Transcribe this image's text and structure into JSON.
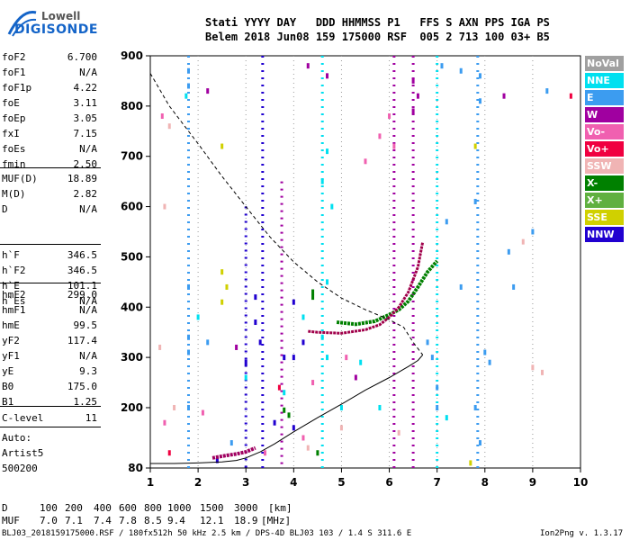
{
  "header": {
    "row1": "Stati YYYY DAY   DDD HHMMSS P1   FFS S AXN PPS IGA PS",
    "row2": "Belem 2018 Jun08 159 175000 RSF  005 2 713 100 03+ B5"
  },
  "logo": {
    "line1": "Lowell",
    "line2": "DIGISONDE"
  },
  "params_group1": [
    {
      "name": "foF2",
      "value": "6.700"
    },
    {
      "name": "foF1",
      "value": "N/A"
    },
    {
      "name": "foF1p",
      "value": "4.22"
    },
    {
      "name": "foE",
      "value": "3.11"
    },
    {
      "name": "foEp",
      "value": "3.05"
    },
    {
      "name": "fxI",
      "value": "7.15"
    },
    {
      "name": "foEs",
      "value": "N/A"
    },
    {
      "name": "fmin",
      "value": "2.50"
    }
  ],
  "params_group2": [
    {
      "name": "MUF(D)",
      "value": "18.89"
    },
    {
      "name": "M(D)",
      "value": "2.82"
    },
    {
      "name": "D",
      "value": "N/A"
    }
  ],
  "params_group3": [
    {
      "name": "h`F",
      "value": "346.5"
    },
    {
      "name": "h`F2",
      "value": "346.5"
    },
    {
      "name": "h`E",
      "value": "101.1"
    },
    {
      "name": "h`Es",
      "value": "N/A"
    }
  ],
  "params_group4": [
    {
      "name": "hmF2",
      "value": "299.0"
    },
    {
      "name": "hmF1",
      "value": "N/A"
    },
    {
      "name": "hmE",
      "value": "99.5"
    },
    {
      "name": "yF2",
      "value": "117.4"
    },
    {
      "name": "yF1",
      "value": "N/A"
    },
    {
      "name": "yE",
      "value": "9.3"
    },
    {
      "name": "B0",
      "value": "175.0"
    },
    {
      "name": "B1",
      "value": "1.25"
    }
  ],
  "params_group5": [
    {
      "name": "C-level",
      "value": "11"
    }
  ],
  "autoscale": {
    "line1": "Auto:",
    "line2": "Artist5",
    "line3": "500200"
  },
  "legend": [
    {
      "label": "NoVal",
      "color": "#a0a0a0"
    },
    {
      "label": "NNE",
      "color": "#00e0f0"
    },
    {
      "label": "E",
      "color": "#3c9cf0"
    },
    {
      "label": "W",
      "color": "#a000a0"
    },
    {
      "label": "Vo-",
      "color": "#f060b0"
    },
    {
      "label": "Vo+",
      "color": "#f00040"
    },
    {
      "label": "SSW",
      "color": "#f0b4b4"
    },
    {
      "label": "X-",
      "color": "#008000"
    },
    {
      "label": "X+",
      "color": "#60b040"
    },
    {
      "label": "SSE",
      "color": "#d0d000"
    },
    {
      "label": "NNW",
      "color": "#2000d0"
    }
  ],
  "muf_table": {
    "d_label": "D",
    "d_values": [
      "100",
      "200",
      "400",
      "600",
      "800",
      "1000",
      "1500",
      "3000",
      "[km]"
    ],
    "muf_label": "MUF",
    "muf_values": [
      "7.0",
      "7.1",
      "7.4",
      "7.8",
      "8.5",
      "9.4",
      "12.1",
      "18.9",
      "[MHz]"
    ]
  },
  "footer": {
    "left": "BLJ03_2018159175000.RSF / 180fx512h 50 kHz 2.5 km / DPS-4D BLJ03 103 / 1.4 S 311.6 E",
    "right": "Ion2Png v. 1.3.17"
  },
  "chart_data": {
    "type": "scatter",
    "xlim": [
      1,
      10
    ],
    "ylim": [
      80,
      900
    ],
    "x_ticks": [
      "1",
      "2",
      "3",
      "4",
      "5",
      "6",
      "7",
      "8",
      "9",
      "10"
    ],
    "y_ticks": [
      "80",
      "200",
      "300",
      "400",
      "500",
      "600",
      "700",
      "800",
      "900"
    ],
    "y_tick_values": [
      80,
      200,
      300,
      400,
      500,
      600,
      700,
      800,
      900
    ],
    "grid": "vertical dotted",
    "profile_curve": [
      [
        1.0,
        89
      ],
      [
        1.5,
        89
      ],
      [
        2.0,
        90
      ],
      [
        2.5,
        92
      ],
      [
        2.8,
        95
      ],
      [
        3.0,
        100
      ],
      [
        3.3,
        112
      ],
      [
        3.6,
        128
      ],
      [
        4.0,
        152
      ],
      [
        4.5,
        180
      ],
      [
        5.0,
        207
      ],
      [
        5.5,
        235
      ],
      [
        6.0,
        260
      ],
      [
        6.4,
        282
      ],
      [
        6.6,
        294
      ],
      [
        6.7,
        305
      ]
    ],
    "dashed_curve": [
      [
        1.0,
        865
      ],
      [
        1.4,
        800
      ],
      [
        2.0,
        725
      ],
      [
        2.5,
        660
      ],
      [
        3.0,
        600
      ],
      [
        3.5,
        540
      ],
      [
        4.0,
        490
      ],
      [
        4.5,
        450
      ],
      [
        5.0,
        418
      ],
      [
        5.5,
        395
      ],
      [
        6.0,
        375
      ],
      [
        6.3,
        360
      ],
      [
        6.5,
        330
      ],
      [
        6.7,
        305
      ]
    ],
    "trace_o": [
      [
        4.3,
        352
      ],
      [
        4.5,
        350
      ],
      [
        5.0,
        348
      ],
      [
        5.5,
        355
      ],
      [
        5.8,
        365
      ],
      [
        6.0,
        380
      ],
      [
        6.2,
        400
      ],
      [
        6.4,
        430
      ],
      [
        6.6,
        480
      ],
      [
        6.7,
        530
      ]
    ],
    "trace_x": [
      [
        4.9,
        370
      ],
      [
        5.3,
        366
      ],
      [
        5.7,
        372
      ],
      [
        6.0,
        385
      ],
      [
        6.2,
        395
      ],
      [
        6.4,
        412
      ],
      [
        6.6,
        440
      ],
      [
        6.8,
        470
      ],
      [
        7.0,
        492
      ]
    ],
    "trace_e": [
      [
        2.3,
        100
      ],
      [
        2.6,
        105
      ],
      [
        2.8,
        108
      ],
      [
        3.0,
        112
      ],
      [
        3.2,
        120
      ]
    ],
    "interference_lines": [
      {
        "x": 3.5,
        "color": "#2000d0"
      },
      {
        "x": 3.55,
        "color": "#2000d0"
      },
      {
        "x": 6.05,
        "color": "#a000a0"
      },
      {
        "x": 6.3,
        "color": "#a000a0"
      }
    ],
    "scatter_points": [
      {
        "x": 1.8,
        "y": 870,
        "c": "#3c9cf0"
      },
      {
        "x": 1.8,
        "y": 840,
        "c": "#3c9cf0"
      },
      {
        "x": 1.75,
        "y": 820,
        "c": "#00e0f0"
      },
      {
        "x": 2.2,
        "y": 830,
        "c": "#a000a0"
      },
      {
        "x": 4.3,
        "y": 880,
        "c": "#a000a0"
      },
      {
        "x": 4.7,
        "y": 860,
        "c": "#a000a0"
      },
      {
        "x": 6.5,
        "y": 850,
        "c": "#a000a0"
      },
      {
        "x": 6.6,
        "y": 820,
        "c": "#a000a0"
      },
      {
        "x": 6.5,
        "y": 790,
        "c": "#a000a0"
      },
      {
        "x": 7.1,
        "y": 880,
        "c": "#3c9cf0"
      },
      {
        "x": 7.5,
        "y": 870,
        "c": "#3c9cf0"
      },
      {
        "x": 7.9,
        "y": 860,
        "c": "#3c9cf0"
      },
      {
        "x": 7.9,
        "y": 810,
        "c": "#3c9cf0"
      },
      {
        "x": 8.4,
        "y": 820,
        "c": "#a000a0"
      },
      {
        "x": 9.3,
        "y": 830,
        "c": "#3c9cf0"
      },
      {
        "x": 6.0,
        "y": 780,
        "c": "#f060b0"
      },
      {
        "x": 5.8,
        "y": 740,
        "c": "#f060b0"
      },
      {
        "x": 4.7,
        "y": 710,
        "c": "#00e0f0"
      },
      {
        "x": 4.6,
        "y": 650,
        "c": "#00e0f0"
      },
      {
        "x": 4.8,
        "y": 600,
        "c": "#00e0f0"
      },
      {
        "x": 6.1,
        "y": 720,
        "c": "#f060b0"
      },
      {
        "x": 5.5,
        "y": 690,
        "c": "#f060b0"
      },
      {
        "x": 7.8,
        "y": 720,
        "c": "#d0d000"
      },
      {
        "x": 2.5,
        "y": 720,
        "c": "#d0d000"
      },
      {
        "x": 7.8,
        "y": 610,
        "c": "#3c9cf0"
      },
      {
        "x": 7.2,
        "y": 570,
        "c": "#3c9cf0"
      },
      {
        "x": 8.5,
        "y": 510,
        "c": "#3c9cf0"
      },
      {
        "x": 9.0,
        "y": 550,
        "c": "#3c9cf0"
      },
      {
        "x": 8.8,
        "y": 530,
        "c": "#f0b4b4"
      },
      {
        "x": 2.5,
        "y": 470,
        "c": "#d0d000"
      },
      {
        "x": 2.6,
        "y": 440,
        "c": "#d0d000"
      },
      {
        "x": 2.5,
        "y": 410,
        "c": "#d0d000"
      },
      {
        "x": 1.8,
        "y": 440,
        "c": "#3c9cf0"
      },
      {
        "x": 1.8,
        "y": 340,
        "c": "#3c9cf0"
      },
      {
        "x": 1.8,
        "y": 310,
        "c": "#3c9cf0"
      },
      {
        "x": 2.0,
        "y": 380,
        "c": "#00e0f0"
      },
      {
        "x": 2.2,
        "y": 330,
        "c": "#3c9cf0"
      },
      {
        "x": 2.8,
        "y": 320,
        "c": "#a000a0"
      },
      {
        "x": 3.0,
        "y": 260,
        "c": "#00e0f0"
      },
      {
        "x": 3.2,
        "y": 420,
        "c": "#2000d0"
      },
      {
        "x": 3.2,
        "y": 370,
        "c": "#2000d0"
      },
      {
        "x": 3.3,
        "y": 330,
        "c": "#2000d0"
      },
      {
        "x": 3.0,
        "y": 290,
        "c": "#2000d0"
      },
      {
        "x": 3.8,
        "y": 300,
        "c": "#2000d0"
      },
      {
        "x": 3.8,
        "y": 230,
        "c": "#00e0f0"
      },
      {
        "x": 4.0,
        "y": 410,
        "c": "#2000d0"
      },
      {
        "x": 4.2,
        "y": 380,
        "c": "#00e0f0"
      },
      {
        "x": 4.4,
        "y": 430,
        "c": "#008000"
      },
      {
        "x": 4.4,
        "y": 420,
        "c": "#008000"
      },
      {
        "x": 4.2,
        "y": 330,
        "c": "#2000d0"
      },
      {
        "x": 4.0,
        "y": 300,
        "c": "#2000d0"
      },
      {
        "x": 4.7,
        "y": 450,
        "c": "#00e0f0"
      },
      {
        "x": 4.7,
        "y": 300,
        "c": "#00e0f0"
      },
      {
        "x": 5.4,
        "y": 290,
        "c": "#00e0f0"
      },
      {
        "x": 5.0,
        "y": 200,
        "c": "#00e0f0"
      },
      {
        "x": 5.8,
        "y": 200,
        "c": "#00e0f0"
      },
      {
        "x": 7.0,
        "y": 200,
        "c": "#3c9cf0"
      },
      {
        "x": 7.0,
        "y": 240,
        "c": "#3c9cf0"
      },
      {
        "x": 7.2,
        "y": 180,
        "c": "#00e0f0"
      },
      {
        "x": 7.8,
        "y": 200,
        "c": "#3c9cf0"
      },
      {
        "x": 7.9,
        "y": 130,
        "c": "#3c9cf0"
      },
      {
        "x": 8.0,
        "y": 310,
        "c": "#3c9cf0"
      },
      {
        "x": 8.1,
        "y": 290,
        "c": "#3c9cf0"
      },
      {
        "x": 9.0,
        "y": 280,
        "c": "#f0b4b4"
      },
      {
        "x": 9.2,
        "y": 270,
        "c": "#f0b4b4"
      },
      {
        "x": 7.7,
        "y": 90,
        "c": "#d0d000"
      },
      {
        "x": 2.1,
        "y": 190,
        "c": "#f060b0"
      },
      {
        "x": 1.3,
        "y": 170,
        "c": "#f060b0"
      },
      {
        "x": 1.4,
        "y": 110,
        "c": "#f00040"
      },
      {
        "x": 1.8,
        "y": 200,
        "c": "#3c9cf0"
      },
      {
        "x": 3.7,
        "y": 240,
        "c": "#f00040"
      },
      {
        "x": 3.8,
        "y": 195,
        "c": "#008000"
      },
      {
        "x": 3.9,
        "y": 185,
        "c": "#008000"
      },
      {
        "x": 3.6,
        "y": 170,
        "c": "#2000d0"
      },
      {
        "x": 4.0,
        "y": 160,
        "c": "#2000d0"
      },
      {
        "x": 4.2,
        "y": 140,
        "c": "#f060b0"
      },
      {
        "x": 4.3,
        "y": 120,
        "c": "#f0b4b4"
      },
      {
        "x": 4.5,
        "y": 110,
        "c": "#008000"
      },
      {
        "x": 3.4,
        "y": 110,
        "c": "#f060b0"
      },
      {
        "x": 2.7,
        "y": 130,
        "c": "#3c9cf0"
      },
      {
        "x": 2.4,
        "y": 95,
        "c": "#2000d0"
      },
      {
        "x": 5.1,
        "y": 300,
        "c": "#f060b0"
      },
      {
        "x": 5.3,
        "y": 260,
        "c": "#a000a0"
      },
      {
        "x": 4.4,
        "y": 250,
        "c": "#f060b0"
      },
      {
        "x": 1.25,
        "y": 780,
        "c": "#f060b0"
      },
      {
        "x": 1.4,
        "y": 760,
        "c": "#f0b4b4"
      },
      {
        "x": 1.3,
        "y": 600,
        "c": "#f0b4b4"
      },
      {
        "x": 1.2,
        "y": 320,
        "c": "#f0b4b4"
      },
      {
        "x": 1.5,
        "y": 200,
        "c": "#f0b4b4"
      },
      {
        "x": 8.6,
        "y": 440,
        "c": "#3c9cf0"
      },
      {
        "x": 7.5,
        "y": 440,
        "c": "#3c9cf0"
      },
      {
        "x": 6.8,
        "y": 330,
        "c": "#3c9cf0"
      },
      {
        "x": 6.9,
        "y": 300,
        "c": "#3c9cf0"
      },
      {
        "x": 4.6,
        "y": 340,
        "c": "#00e0f0"
      },
      {
        "x": 5.0,
        "y": 160,
        "c": "#f0b4b4"
      },
      {
        "x": 6.2,
        "y": 150,
        "c": "#f0b4b4"
      },
      {
        "x": 9.8,
        "y": 820,
        "c": "#f00040"
      }
    ],
    "vertical_dash_bands": [
      {
        "x": 1.8,
        "y0": 80,
        "y1": 900,
        "c": "#3c9cf0"
      },
      {
        "x": 3.0,
        "y0": 80,
        "y1": 600,
        "c": "#2000d0"
      },
      {
        "x": 3.35,
        "y0": 80,
        "y1": 900,
        "c": "#2000d0"
      },
      {
        "x": 3.75,
        "y0": 80,
        "y1": 650,
        "c": "#a000a0"
      },
      {
        "x": 4.6,
        "y0": 80,
        "y1": 900,
        "c": "#00e0f0"
      },
      {
        "x": 6.1,
        "y0": 80,
        "y1": 900,
        "c": "#a000a0"
      },
      {
        "x": 6.5,
        "y0": 80,
        "y1": 900,
        "c": "#a000a0"
      },
      {
        "x": 7.0,
        "y0": 80,
        "y1": 900,
        "c": "#00e0f0"
      },
      {
        "x": 7.85,
        "y0": 80,
        "y1": 900,
        "c": "#3c9cf0"
      }
    ]
  }
}
